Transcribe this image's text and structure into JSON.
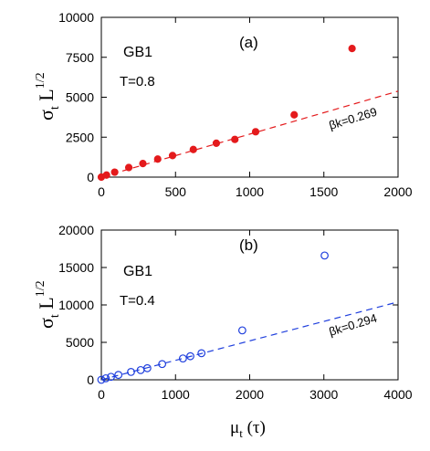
{
  "chart_data": [
    {
      "type": "scatter",
      "panel_label": "(a)",
      "system_label": "GB1",
      "temp_label": "T=0.8",
      "fit_label": "βk=0.269",
      "x_ticks": [
        "0",
        "500",
        "1000",
        "1500",
        "2000"
      ],
      "y_ticks": [
        "0",
        "2500",
        "5000",
        "7500",
        "10000"
      ],
      "xlim": [
        0,
        2000
      ],
      "ylim": [
        0,
        10000
      ],
      "ylabel": "σt L1/2",
      "color": "#e41a1c",
      "marker": "filled-circle",
      "fit_slope": 2.69,
      "series": [
        {
          "x": [
            0,
            35,
            90,
            185,
            280,
            380,
            480,
            620,
            775,
            900,
            1040,
            1300,
            1690
          ],
          "y": [
            0,
            130,
            310,
            600,
            850,
            1130,
            1350,
            1730,
            2120,
            2360,
            2840,
            3900,
            8050
          ]
        }
      ]
    },
    {
      "type": "scatter",
      "panel_label": "(b)",
      "system_label": "GB1",
      "temp_label": "T=0.4",
      "fit_label": "βk=0.294",
      "x_ticks": [
        "0",
        "1000",
        "2000",
        "3000",
        "4000"
      ],
      "y_ticks": [
        "0",
        "5000",
        "10000",
        "15000",
        "20000"
      ],
      "xlim": [
        0,
        4000
      ],
      "ylim": [
        0,
        20000
      ],
      "ylabel": "σt L1/2",
      "xlabel": "μt (τ)",
      "color": "#1f3fdd",
      "marker": "open-circle",
      "fit_slope": 2.6,
      "series": [
        {
          "x": [
            0,
            60,
            130,
            230,
            400,
            530,
            620,
            820,
            1100,
            1200,
            1350,
            1900,
            3010
          ],
          "y": [
            0,
            200,
            400,
            650,
            1050,
            1300,
            1550,
            2100,
            2850,
            3150,
            3550,
            6600,
            16600
          ]
        }
      ]
    }
  ]
}
